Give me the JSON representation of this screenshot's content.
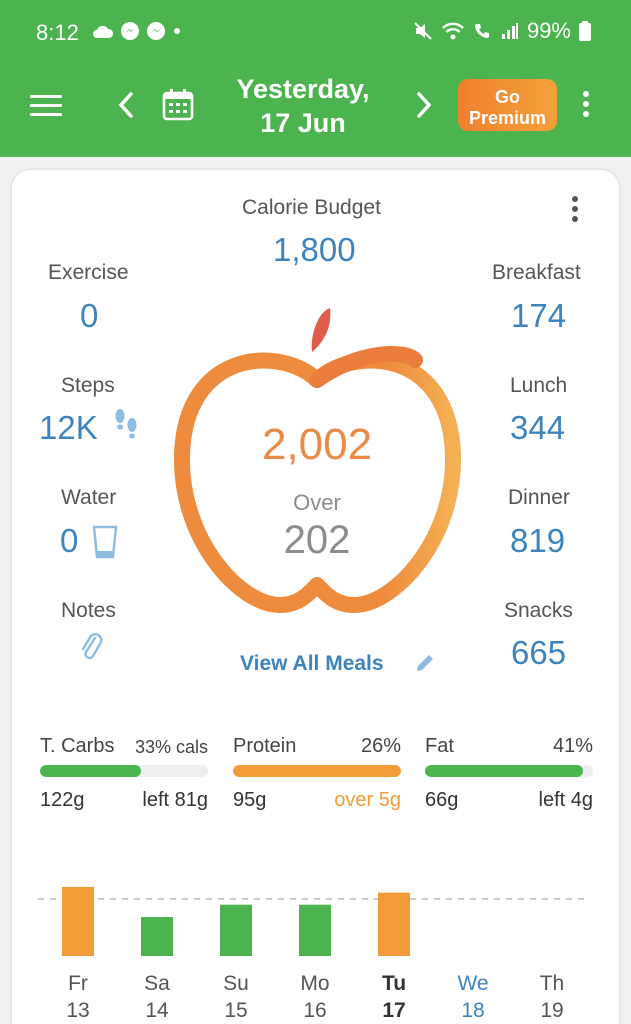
{
  "status_bar": {
    "time": "8:12",
    "battery": "99%"
  },
  "header": {
    "date_line1": "Yesterday,",
    "date_line2": "17 Jun",
    "premium_line1": "Go",
    "premium_line2": "Premium"
  },
  "summary": {
    "budget_label": "Calorie Budget",
    "budget_value": "1,800",
    "exercise_label": "Exercise",
    "exercise_value": "0",
    "steps_label": "Steps",
    "steps_value": "12K",
    "water_label": "Water",
    "water_value": "0",
    "notes_label": "Notes",
    "breakfast_label": "Breakfast",
    "breakfast_value": "174",
    "lunch_label": "Lunch",
    "lunch_value": "344",
    "dinner_label": "Dinner",
    "dinner_value": "819",
    "snacks_label": "Snacks",
    "snacks_value": "665",
    "consumed": "2,002",
    "over_label": "Over",
    "over_value": "202",
    "view_meals": "View All Meals"
  },
  "macros": [
    {
      "name": "T. Carbs",
      "pct": "33% cals",
      "fill": 0.6,
      "color": "#4cb44f",
      "grams": "122g",
      "left": "left 81g",
      "left_color": "#333333"
    },
    {
      "name": "Protein",
      "pct": "26%",
      "fill": 1.0,
      "color": "#f29b38",
      "grams": "95g",
      "left": "over 5g",
      "left_color": "#f29b38"
    },
    {
      "name": "Fat",
      "pct": "41%",
      "fill": 0.94,
      "color": "#4cb44f",
      "grams": "66g",
      "left": "left 4g",
      "left_color": "#333333"
    }
  ],
  "colors": {
    "green": "#4cb44f",
    "orange": "#f29b38",
    "blue": "#3d84bf"
  },
  "chart_data": {
    "type": "bar",
    "categories": [
      "Fr 13",
      "Sa 14",
      "Su 15",
      "Mo 16",
      "Tu 17",
      "We 18",
      "Th 19"
    ],
    "day_labels": [
      "Fr",
      "Sa",
      "Su",
      "Mo",
      "Tu",
      "We",
      "Th"
    ],
    "date_labels": [
      "13",
      "14",
      "15",
      "16",
      "17",
      "18",
      "19"
    ],
    "values": [
      2180,
      1230,
      1620,
      1620,
      2002,
      null,
      null
    ],
    "budget": 1800,
    "bar_colors": [
      "#f29b38",
      "#4cb44f",
      "#4cb44f",
      "#4cb44f",
      "#f29b38",
      null,
      null
    ],
    "selected_index": 4,
    "today_index": 5
  }
}
